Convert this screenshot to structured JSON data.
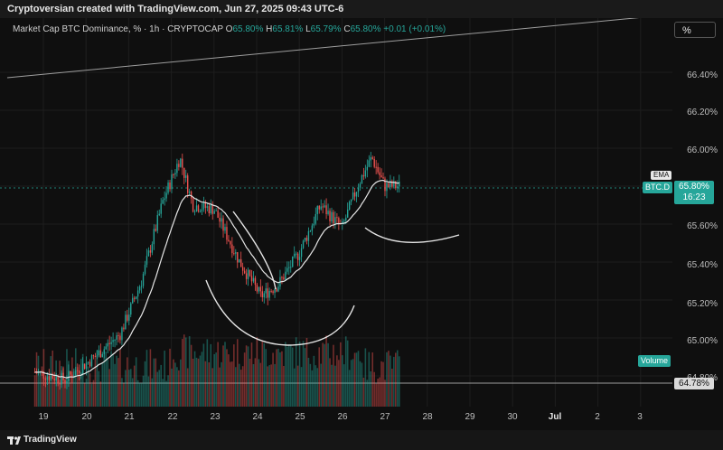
{
  "header": {
    "caption": "Cryptoversian created with TradingView.com, Jun 27, 2025 09:43 UTC-6"
  },
  "legend": {
    "symbol": "Market Cap BTC Dominance, %",
    "interval": "1h",
    "exchange": "CRYPTOCAP",
    "open_label": "O",
    "open": "65.80%",
    "high_label": "H",
    "high": "65.81%",
    "low_label": "L",
    "low": "65.79%",
    "close_label": "C",
    "close": "65.80%",
    "change": "+0.01 (+0.01%)"
  },
  "toolbar": {
    "scale_button": "%"
  },
  "price_axis": {
    "ticks": [
      "66.40%",
      "66.20%",
      "66.00%",
      "65.60%",
      "65.40%",
      "65.20%",
      "65.00%",
      "64.80%"
    ],
    "ema_label": "EMA",
    "series_label": "BTC.D",
    "current_price": "65.80%",
    "countdown": "16:23",
    "volume_label": "Volume",
    "last_line_price": "64.78%"
  },
  "time_axis": {
    "labels": [
      "19",
      "20",
      "21",
      "22",
      "23",
      "24",
      "25",
      "26",
      "27",
      "28",
      "29",
      "30",
      "Jul",
      "2",
      "3"
    ]
  },
  "footer": {
    "brand": "TradingView"
  },
  "colors": {
    "up": "#26a69a",
    "down": "#ef5350",
    "ema": "#e6e6e6",
    "background": "#0f0f0f"
  },
  "chart_data": {
    "type": "candlestick",
    "symbol": "BTC.D",
    "ylim": [
      64.74,
      66.5
    ],
    "ohlc_segments": [
      {
        "from_day": 18.8,
        "value": 64.82
      },
      {
        "from_day": 19.5,
        "value": 64.78
      },
      {
        "from_day": 20.2,
        "value": 64.9
      },
      {
        "from_day": 20.8,
        "value": 65.02
      },
      {
        "from_day": 21.3,
        "value": 65.3
      },
      {
        "from_day": 21.8,
        "value": 65.72
      },
      {
        "from_day": 22.2,
        "value": 65.95
      },
      {
        "from_day": 22.5,
        "value": 65.7
      },
      {
        "from_day": 23.0,
        "value": 65.68
      },
      {
        "from_day": 23.6,
        "value": 65.4
      },
      {
        "from_day": 24.1,
        "value": 65.22
      },
      {
        "from_day": 24.5,
        "value": 65.28
      },
      {
        "from_day": 25.0,
        "value": 65.45
      },
      {
        "from_day": 25.5,
        "value": 65.7
      },
      {
        "from_day": 26.0,
        "value": 65.58
      },
      {
        "from_day": 26.4,
        "value": 65.82
      },
      {
        "from_day": 26.7,
        "value": 65.95
      },
      {
        "from_day": 27.0,
        "value": 65.8
      },
      {
        "from_day": 27.3,
        "value": 65.8
      }
    ]
  }
}
